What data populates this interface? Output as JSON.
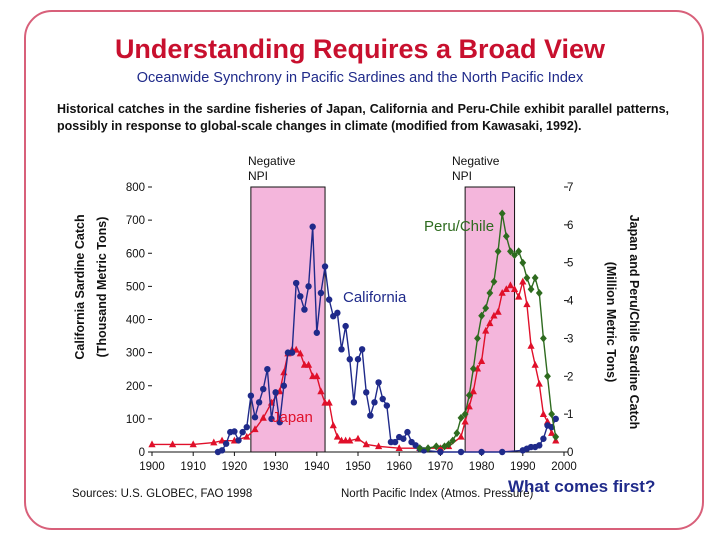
{
  "slide": {
    "title": "Understanding Requires a Broad View",
    "subtitle": "Oceanwide Synchrony in Pacific Sardines and the North Pacific Index",
    "description": "Historical catches in the sardine fisheries of Japan, California and Peru-Chile exhibit parallel patterns, possibly in response to global-scale changes in climate (modified from Kawasaki, 1992).",
    "npi_label_1": "Negative NPI",
    "npi_label_2": "Negative NPI",
    "left_axis_label_1": "California Sardine Catch",
    "left_axis_label_2": "(Thousand Metric Tons)",
    "right_axis_label_1": "Japan and Peru/Chile Sardine Catch",
    "right_axis_label_2": "(Million Metric Tons)",
    "sources": "Sources: U.S. GLOBEC, FAO 1998",
    "npi_footer": "North Pacific Index (Atmos. Pressure)",
    "question": "What comes first?",
    "colors": {
      "accent": "#c8102e",
      "subtitle": "#1f2a8a",
      "shade": "#f4b6dc",
      "california": "#1f2a8a",
      "japan": "#e0102a",
      "peru_chile": "#2e6b1f"
    }
  },
  "chart_data": {
    "type": "line",
    "x_range": [
      1900,
      2000
    ],
    "x_ticks": [
      1900,
      1910,
      1920,
      1930,
      1940,
      1950,
      1960,
      1970,
      1980,
      1990,
      2000
    ],
    "y_left_range": [
      0,
      800
    ],
    "y_left_ticks": [
      0,
      100,
      200,
      300,
      400,
      500,
      600,
      700,
      800
    ],
    "y_right_range": [
      0,
      7
    ],
    "y_right_ticks": [
      0,
      1,
      2,
      3,
      4,
      5,
      6,
      7
    ],
    "shaded_periods": [
      [
        1924,
        1942
      ],
      [
        1976,
        1988
      ]
    ],
    "series": [
      {
        "name": "California",
        "axis": "left",
        "color": "#1f2a8a",
        "marker": "circle",
        "x": [
          1916,
          1917,
          1918,
          1919,
          1920,
          1921,
          1922,
          1923,
          1924,
          1925,
          1926,
          1927,
          1928,
          1929,
          1930,
          1931,
          1932,
          1933,
          1934,
          1935,
          1936,
          1937,
          1938,
          1939,
          1940,
          1941,
          1942,
          1943,
          1944,
          1945,
          1946,
          1947,
          1948,
          1949,
          1950,
          1951,
          1952,
          1953,
          1954,
          1955,
          1956,
          1957,
          1958,
          1959,
          1960,
          1961,
          1962,
          1963,
          1964,
          1965,
          1966,
          1970,
          1975,
          1980,
          1985,
          1990,
          1991,
          1992,
          1993,
          1994,
          1995,
          1996,
          1997,
          1998
        ],
        "y": [
          0,
          5,
          25,
          60,
          62,
          35,
          60,
          75,
          170,
          105,
          150,
          190,
          250,
          100,
          180,
          90,
          200,
          300,
          300,
          510,
          470,
          430,
          500,
          680,
          360,
          480,
          560,
          460,
          410,
          420,
          310,
          380,
          280,
          150,
          280,
          310,
          180,
          110,
          150,
          210,
          160,
          140,
          30,
          30,
          45,
          40,
          60,
          30,
          20,
          10,
          5,
          0,
          0,
          0,
          0,
          5,
          10,
          15,
          15,
          20,
          40,
          80,
          75,
          100
        ]
      },
      {
        "name": "Japan",
        "axis": "right",
        "color": "#e0102a",
        "marker": "triangle",
        "x": [
          1900,
          1905,
          1910,
          1915,
          1917,
          1920,
          1923,
          1925,
          1927,
          1929,
          1931,
          1932,
          1933,
          1934,
          1935,
          1936,
          1937,
          1938,
          1939,
          1940,
          1941,
          1942,
          1943,
          1944,
          1945,
          1946,
          1947,
          1948,
          1950,
          1952,
          1955,
          1960,
          1965,
          1970,
          1972,
          1975,
          1976,
          1977,
          1978,
          1979,
          1980,
          1981,
          1982,
          1983,
          1984,
          1985,
          1986,
          1987,
          1988,
          1989,
          1990,
          1991,
          1992,
          1993,
          1994,
          1995,
          1996,
          1997,
          1998
        ],
        "y": [
          0.2,
          0.2,
          0.2,
          0.25,
          0.3,
          0.3,
          0.4,
          0.6,
          0.9,
          1.3,
          1.6,
          2.1,
          2.6,
          2.7,
          2.7,
          2.6,
          2.3,
          2.3,
          2.0,
          2.0,
          1.6,
          1.3,
          1.3,
          0.7,
          0.4,
          0.3,
          0.3,
          0.3,
          0.35,
          0.2,
          0.15,
          0.1,
          0.1,
          0.1,
          0.15,
          0.4,
          0.8,
          1.2,
          1.6,
          2.2,
          2.4,
          3.2,
          3.4,
          3.6,
          3.7,
          4.2,
          4.3,
          4.4,
          4.3,
          4.1,
          4.5,
          3.9,
          2.8,
          2.3,
          1.8,
          1.0,
          0.8,
          0.5,
          0.3
        ]
      },
      {
        "name": "Peru/Chile",
        "axis": "right",
        "color": "#2e6b1f",
        "marker": "diamond",
        "x": [
          1965,
          1967,
          1969,
          1971,
          1972,
          1973,
          1974,
          1975,
          1976,
          1977,
          1978,
          1979,
          1980,
          1981,
          1982,
          1983,
          1984,
          1985,
          1986,
          1987,
          1988,
          1989,
          1990,
          1991,
          1992,
          1993,
          1994,
          1995,
          1996,
          1997,
          1998
        ],
        "y": [
          0.1,
          0.1,
          0.15,
          0.15,
          0.2,
          0.3,
          0.5,
          0.9,
          1.0,
          1.5,
          2.2,
          3.0,
          3.6,
          3.8,
          4.2,
          4.5,
          5.3,
          6.3,
          5.7,
          5.3,
          5.2,
          5.3,
          5.0,
          4.6,
          4.3,
          4.6,
          4.2,
          3.0,
          2.0,
          1.0,
          0.4
        ]
      }
    ]
  }
}
